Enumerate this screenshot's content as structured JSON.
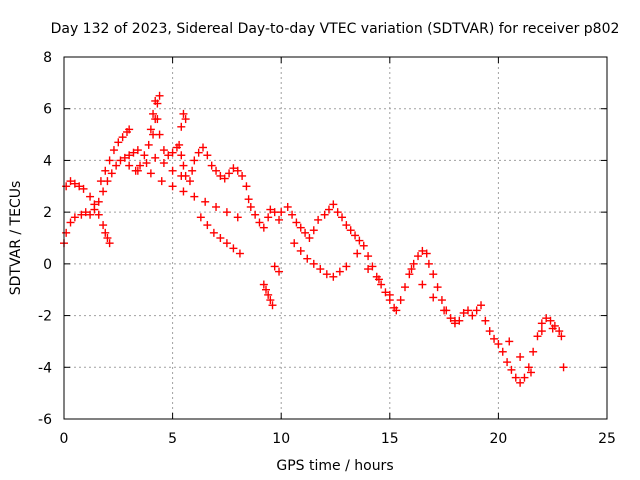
{
  "chart_data": {
    "type": "scatter",
    "title": "Day 132 of 2023, Sidereal Day-to-day VTEC variation (SDTVAR) for receiver p802",
    "xlabel": "GPS time / hours",
    "ylabel": "SDTVAR / TECUs",
    "xlim": [
      0,
      25
    ],
    "ylim": [
      -6,
      8
    ],
    "xticks": [
      0,
      5,
      10,
      15,
      20,
      25
    ],
    "xtick_labels": [
      "0",
      "5",
      "10",
      "15",
      "20",
      "25"
    ],
    "yticks": [
      -6,
      -4,
      -2,
      0,
      2,
      4,
      6,
      8
    ],
    "ytick_labels": [
      "-6",
      "-4",
      "-2",
      "0",
      "2",
      "4",
      "6",
      "8"
    ],
    "grid": true,
    "marker": "+",
    "color": "#ff0000",
    "series": [
      {
        "name": "SDTVAR",
        "x": [
          0.0,
          0.1,
          0.3,
          0.5,
          0.8,
          1.0,
          0.1,
          0.3,
          0.5,
          0.7,
          0.9,
          1.2,
          1.4,
          1.6,
          1.8,
          1.9,
          2.0,
          2.1,
          1.7,
          1.9,
          2.1,
          2.3,
          2.5,
          2.7,
          2.9,
          3.0,
          1.2,
          1.4,
          1.6,
          1.8,
          2.0,
          2.2,
          2.4,
          2.6,
          2.8,
          3.0,
          3.2,
          3.4,
          3.3,
          3.5,
          3.7,
          3.9,
          4.0,
          4.1,
          4.2,
          4.3,
          4.4,
          4.6,
          4.8,
          5.0,
          5.2,
          5.4,
          5.5,
          5.6,
          5.8,
          5.9,
          6.0,
          6.2,
          6.4,
          6.6,
          6.8,
          7.0,
          7.2,
          7.4,
          7.6,
          7.8,
          8.0,
          8.2,
          8.4,
          8.5,
          8.6,
          8.8,
          9.0,
          9.2,
          9.4,
          9.5,
          9.7,
          9.9,
          10.0,
          10.3,
          10.5,
          10.7,
          10.9,
          11.1,
          11.3,
          11.5,
          11.7,
          12.0,
          12.2,
          12.4,
          12.6,
          12.8,
          13.0,
          13.2,
          13.4,
          13.6,
          13.8,
          14.0,
          14.2,
          14.4,
          14.6,
          14.8,
          15.0,
          15.2,
          15.3,
          15.5,
          15.7,
          15.9,
          16.1,
          16.3,
          16.5,
          16.7,
          16.8,
          17.0,
          17.2,
          17.4,
          17.6,
          17.8,
          18.0,
          18.2,
          18.4,
          18.6,
          18.8,
          19.0,
          19.2,
          19.4,
          19.6,
          19.8,
          20.0,
          20.2,
          20.4,
          20.6,
          20.8,
          21.0,
          21.2,
          21.4,
          21.6,
          21.8,
          22.0,
          22.2,
          22.4,
          22.6,
          22.8,
          22.9,
          4.1,
          4.2,
          4.3,
          4.4,
          5.3,
          5.4,
          5.5,
          5.6,
          4.0,
          4.5,
          5.0,
          5.5,
          6.0,
          6.5,
          7.0,
          7.5,
          8.0,
          6.3,
          6.6,
          6.9,
          7.2,
          7.5,
          7.8,
          8.1,
          10.6,
          10.9,
          11.2,
          11.5,
          11.8,
          12.1,
          12.4,
          12.7,
          13.0,
          9.2,
          9.3,
          9.4,
          9.5,
          9.6,
          9.7,
          9.9,
          3.0,
          3.4,
          3.8,
          4.2,
          4.6,
          5.0,
          5.4,
          13.5,
          14.0,
          14.5,
          15.0,
          16.0,
          16.5,
          17.0,
          17.5,
          18.0,
          20.5,
          21.0,
          21.5,
          22.0,
          22.5,
          23.0
        ],
        "y": [
          0.8,
          1.2,
          1.6,
          1.8,
          1.9,
          2.0,
          3.0,
          3.2,
          3.1,
          3.0,
          2.9,
          2.6,
          2.3,
          1.9,
          1.5,
          1.2,
          1.0,
          0.8,
          3.2,
          3.6,
          4.0,
          4.4,
          4.7,
          4.9,
          5.1,
          5.2,
          1.9,
          2.1,
          2.4,
          2.8,
          3.2,
          3.5,
          3.8,
          4.0,
          4.1,
          4.2,
          4.3,
          4.4,
          3.6,
          3.8,
          4.2,
          4.6,
          5.2,
          5.8,
          6.3,
          5.6,
          5.0,
          4.4,
          4.2,
          4.3,
          4.5,
          4.2,
          3.8,
          3.4,
          3.2,
          3.6,
          4.0,
          4.3,
          4.5,
          4.2,
          3.8,
          3.6,
          3.4,
          3.3,
          3.5,
          3.7,
          3.6,
          3.4,
          3.0,
          2.5,
          2.2,
          1.9,
          1.6,
          1.4,
          1.8,
          2.1,
          2.0,
          1.7,
          2.0,
          2.2,
          1.9,
          1.6,
          1.4,
          1.2,
          1.0,
          1.3,
          1.7,
          1.9,
          2.1,
          2.3,
          2.0,
          1.8,
          1.5,
          1.3,
          1.1,
          0.9,
          0.7,
          0.3,
          -0.1,
          -0.5,
          -0.8,
          -1.1,
          -1.4,
          -1.7,
          -1.8,
          -1.4,
          -0.9,
          -0.4,
          0.0,
          0.3,
          0.5,
          0.4,
          0.0,
          -0.4,
          -0.9,
          -1.4,
          -1.8,
          -2.1,
          -2.3,
          -2.2,
          -1.9,
          -1.8,
          -2.0,
          -1.8,
          -1.6,
          -2.2,
          -2.6,
          -2.9,
          -3.1,
          -3.4,
          -3.8,
          -4.1,
          -4.4,
          -4.6,
          -4.4,
          -4.0,
          -3.4,
          -2.8,
          -2.3,
          -2.1,
          -2.2,
          -2.4,
          -2.6,
          -2.8,
          5.0,
          5.6,
          6.2,
          6.5,
          4.6,
          5.3,
          5.8,
          5.6,
          3.5,
          3.2,
          3.0,
          2.8,
          2.6,
          2.4,
          2.2,
          2.0,
          1.8,
          1.8,
          1.5,
          1.2,
          1.0,
          0.8,
          0.6,
          0.4,
          0.8,
          0.5,
          0.2,
          0.0,
          -0.2,
          -0.4,
          -0.5,
          -0.3,
          -0.1,
          -0.8,
          -1.0,
          -1.2,
          -1.4,
          -1.6,
          -0.1,
          -0.3,
          3.8,
          3.6,
          3.9,
          4.1,
          3.9,
          3.6,
          3.4,
          0.4,
          -0.2,
          -0.6,
          -1.2,
          -0.2,
          -0.8,
          -1.3,
          -1.8,
          -2.2,
          -3.0,
          -3.6,
          -4.2,
          -2.6,
          -2.5,
          -4.0
        ]
      }
    ]
  }
}
